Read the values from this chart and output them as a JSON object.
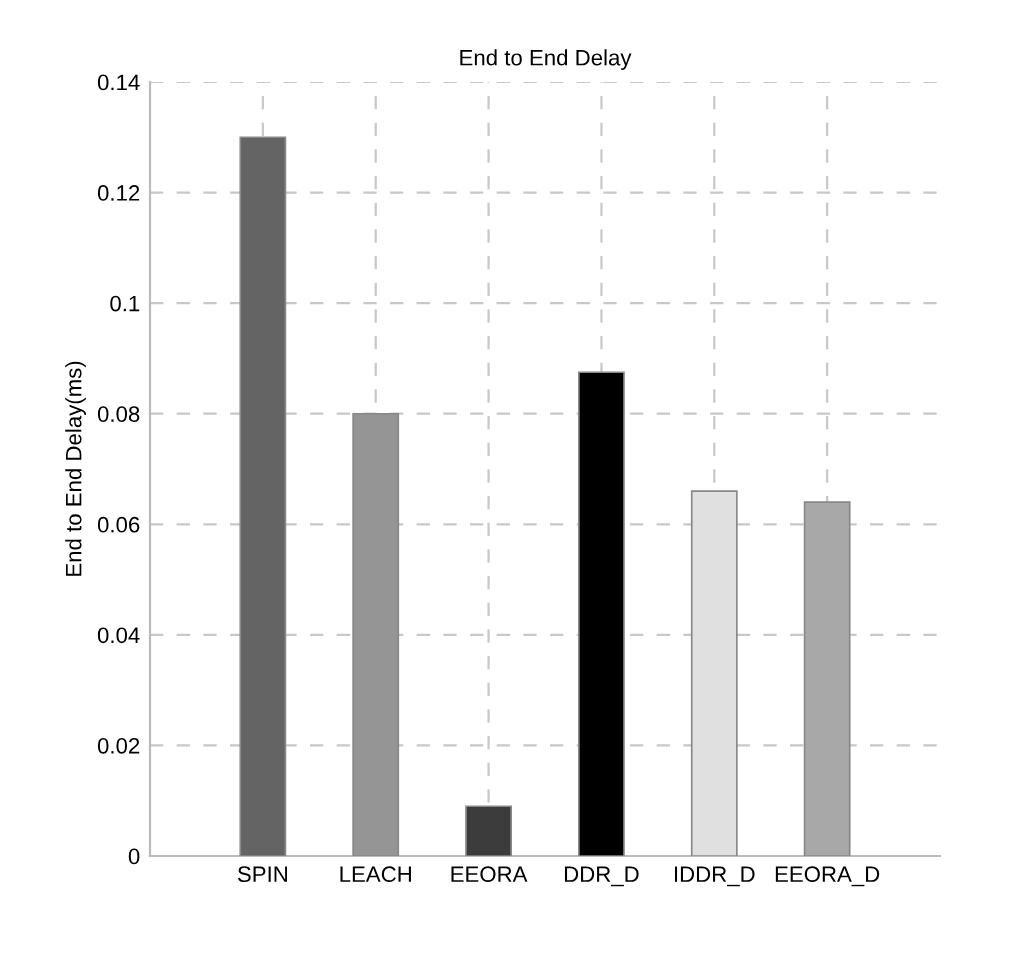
{
  "chart_data": {
    "type": "bar",
    "title": "End to End Delay",
    "ylabel": "End to End Delay(ms)",
    "categories": [
      "SPIN",
      "LEACH",
      "EEORA",
      "DDR_D",
      "IDDR_D",
      "EEORA_D"
    ],
    "values": [
      0.13,
      0.08,
      0.009,
      0.0875,
      0.066,
      0.064
    ],
    "colors": [
      "#646464",
      "#959595",
      "#3c3c3c",
      "#000000",
      "#e0e0e0",
      "#a8a8a8"
    ],
    "ylim": [
      0,
      0.14
    ],
    "yticks": [
      0,
      0.02,
      0.04,
      0.06,
      0.08,
      0.1,
      0.12,
      0.14
    ],
    "grid": true
  }
}
